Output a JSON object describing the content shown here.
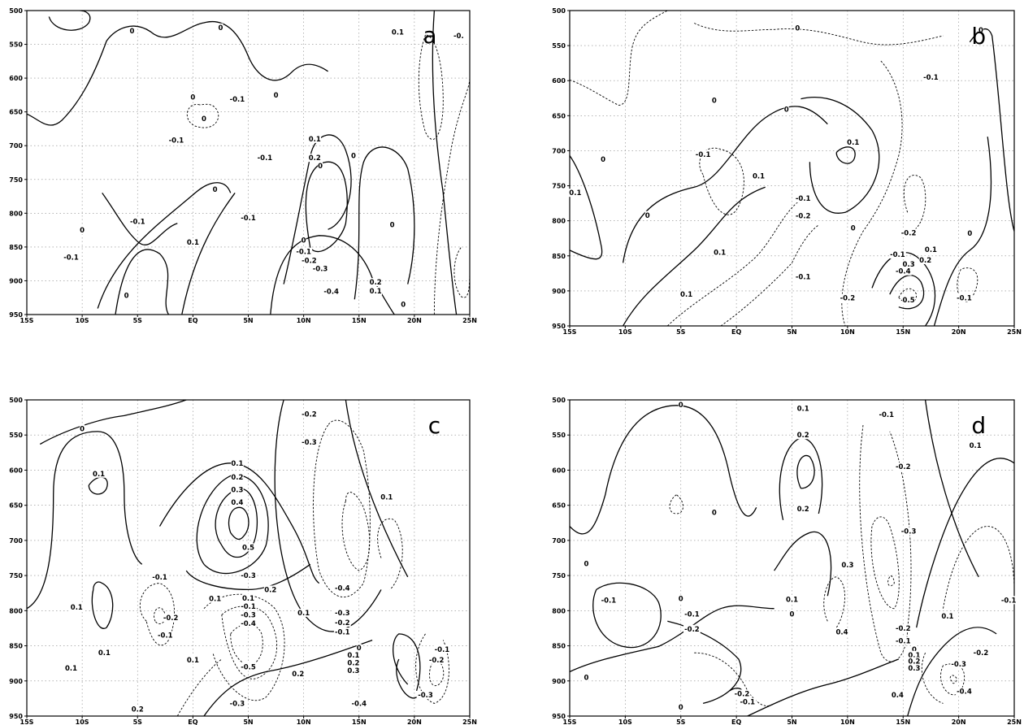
{
  "chart_data": [
    {
      "type": "contour",
      "panel_label": "a",
      "x_ticks": [
        "15S",
        "10S",
        "5S",
        "EQ",
        "5N",
        "10N",
        "15N",
        "20N",
        "25N"
      ],
      "y_ticks": [
        "500",
        "550",
        "600",
        "650",
        "700",
        "750",
        "800",
        "850",
        "900",
        "950"
      ],
      "xlim": [
        -15,
        25
      ],
      "ylim": [
        950,
        500
      ],
      "grid": true,
      "contour_labels": [
        {
          "text": "0",
          "lon": -5.5,
          "p": 530
        },
        {
          "text": "0",
          "lon": 2.5,
          "p": 525
        },
        {
          "text": "0",
          "lon": 0,
          "p": 628
        },
        {
          "text": "0",
          "lon": 1,
          "p": 660
        },
        {
          "text": "0",
          "lon": -10,
          "p": 825
        },
        {
          "text": "0",
          "lon": 2,
          "p": 765
        },
        {
          "text": "0",
          "lon": -6,
          "p": 922
        },
        {
          "text": "0",
          "lon": 7.5,
          "p": 625
        },
        {
          "text": "0",
          "lon": 11.5,
          "p": 730
        },
        {
          "text": "0",
          "lon": 14.5,
          "p": 715
        },
        {
          "text": "0",
          "lon": 18,
          "p": 817
        },
        {
          "text": "0",
          "lon": 19,
          "p": 935
        },
        {
          "text": "0",
          "lon": 10,
          "p": 840
        },
        {
          "text": "0.1",
          "lon": 18.5,
          "p": 532
        },
        {
          "text": "-0.",
          "lon": 24,
          "p": 537
        },
        {
          "text": "-0.1",
          "lon": 4,
          "p": 631
        },
        {
          "text": "-0.1",
          "lon": -1.5,
          "p": 692
        },
        {
          "text": "-0.1",
          "lon": 6.5,
          "p": 718
        },
        {
          "text": "0.1",
          "lon": 11,
          "p": 690
        },
        {
          "text": "0.2",
          "lon": 11,
          "p": 718
        },
        {
          "text": "-0.1",
          "lon": -5,
          "p": 812
        },
        {
          "text": "-0.1",
          "lon": -11,
          "p": 865
        },
        {
          "text": "-0.1",
          "lon": 5,
          "p": 807
        },
        {
          "text": "0.1",
          "lon": 0,
          "p": 843
        },
        {
          "text": "-0.1",
          "lon": 10,
          "p": 857
        },
        {
          "text": "-0.2",
          "lon": 10.5,
          "p": 870
        },
        {
          "text": "-0.3",
          "lon": 11.5,
          "p": 882
        },
        {
          "text": "-0.4",
          "lon": 12.5,
          "p": 916
        },
        {
          "text": "0.2",
          "lon": 16.5,
          "p": 902
        },
        {
          "text": "0.1",
          "lon": 16.5,
          "p": 915
        }
      ]
    },
    {
      "type": "contour",
      "panel_label": "b",
      "x_ticks": [
        "15S",
        "10S",
        "5S",
        "EQ",
        "5N",
        "10N",
        "15N",
        "20N",
        "25N"
      ],
      "y_ticks": [
        "500",
        "550",
        "600",
        "650",
        "700",
        "750",
        "800",
        "850",
        "900",
        "950"
      ],
      "xlim": [
        -15,
        25
      ],
      "ylim": [
        950,
        500
      ],
      "grid": true,
      "contour_labels": [
        {
          "text": "0",
          "lon": 5.5,
          "p": 525
        },
        {
          "text": "0",
          "lon": 22,
          "p": 528
        },
        {
          "text": "-0.1",
          "lon": 17.5,
          "p": 595
        },
        {
          "text": "0",
          "lon": -2,
          "p": 628
        },
        {
          "text": "0",
          "lon": 4.5,
          "p": 641
        },
        {
          "text": "0",
          "lon": -12,
          "p": 712
        },
        {
          "text": "0.1",
          "lon": 10.5,
          "p": 688
        },
        {
          "text": "-0.1",
          "lon": -3,
          "p": 705
        },
        {
          "text": "0.1",
          "lon": -14.5,
          "p": 760
        },
        {
          "text": "0",
          "lon": -8,
          "p": 792
        },
        {
          "text": "0.1",
          "lon": 2,
          "p": 736
        },
        {
          "text": "-0.1",
          "lon": 6,
          "p": 768
        },
        {
          "text": "-0.2",
          "lon": 6,
          "p": 793
        },
        {
          "text": "0",
          "lon": 10.5,
          "p": 810
        },
        {
          "text": "-0.2",
          "lon": 15.5,
          "p": 817
        },
        {
          "text": "0.1",
          "lon": -1.5,
          "p": 845
        },
        {
          "text": "-0.1",
          "lon": 6,
          "p": 880
        },
        {
          "text": "0.1",
          "lon": -4.5,
          "p": 905
        },
        {
          "text": "0",
          "lon": 21,
          "p": 818
        },
        {
          "text": "0.1",
          "lon": 17.5,
          "p": 841
        },
        {
          "text": "0.2",
          "lon": 17,
          "p": 856
        },
        {
          "text": "-0.1",
          "lon": 14.5,
          "p": 848
        },
        {
          "text": "0.3",
          "lon": 15.5,
          "p": 862
        },
        {
          "text": "-0.4",
          "lon": 15,
          "p": 872
        },
        {
          "text": "0.5",
          "lon": 15.5,
          "p": 913
        },
        {
          "text": "-0.2",
          "lon": 10,
          "p": 910
        },
        {
          "text": "-0.1",
          "lon": 20.5,
          "p": 910
        }
      ]
    },
    {
      "type": "contour",
      "panel_label": "c",
      "x_ticks": [
        "15S",
        "10S",
        "5S",
        "EQ",
        "5N",
        "10N",
        "15N",
        "20N",
        "25N"
      ],
      "y_ticks": [
        "500",
        "550",
        "600",
        "650",
        "700",
        "750",
        "800",
        "850",
        "900",
        "950"
      ],
      "xlim": [
        -15,
        25
      ],
      "ylim": [
        950,
        500
      ],
      "grid": true,
      "contour_labels": [
        {
          "text": "0",
          "lon": -10,
          "p": 541
        },
        {
          "text": "-0.2",
          "lon": 10.5,
          "p": 520
        },
        {
          "text": "-0.3",
          "lon": 10.5,
          "p": 560
        },
        {
          "text": "0.1",
          "lon": -8.5,
          "p": 605
        },
        {
          "text": "0.1",
          "lon": 4,
          "p": 590
        },
        {
          "text": "0.2",
          "lon": 4,
          "p": 610
        },
        {
          "text": "0.3",
          "lon": 4,
          "p": 628
        },
        {
          "text": "0.4",
          "lon": 4,
          "p": 646
        },
        {
          "text": "0.5",
          "lon": 5,
          "p": 710
        },
        {
          "text": "-0.3",
          "lon": 5,
          "p": 750
        },
        {
          "text": "0.1",
          "lon": 17.5,
          "p": 638
        },
        {
          "text": "-0.1",
          "lon": -3,
          "p": 752
        },
        {
          "text": "0.1",
          "lon": -10.5,
          "p": 795
        },
        {
          "text": "-0.2",
          "lon": -2,
          "p": 810
        },
        {
          "text": "-0.1",
          "lon": -2.5,
          "p": 835
        },
        {
          "text": "0.2",
          "lon": 7,
          "p": 770
        },
        {
          "text": "0.1",
          "lon": 2,
          "p": 783
        },
        {
          "text": "0.1",
          "lon": 10,
          "p": 803
        },
        {
          "text": "-0.4",
          "lon": 13.5,
          "p": 768
        },
        {
          "text": "-0.3",
          "lon": 13.5,
          "p": 803
        },
        {
          "text": "-0.2",
          "lon": 13.5,
          "p": 817
        },
        {
          "text": "-0.1",
          "lon": 13.5,
          "p": 830
        },
        {
          "text": "0.1",
          "lon": 5,
          "p": 782
        },
        {
          "text": "-0.1",
          "lon": 5,
          "p": 794
        },
        {
          "text": "-0.3",
          "lon": 5,
          "p": 806
        },
        {
          "text": "-0.4",
          "lon": 5,
          "p": 818
        },
        {
          "text": "-0.5",
          "lon": 5,
          "p": 880
        },
        {
          "text": "0.2",
          "lon": 9.5,
          "p": 890
        },
        {
          "text": "-0.3",
          "lon": 4,
          "p": 932
        },
        {
          "text": "0.1",
          "lon": -11,
          "p": 882
        },
        {
          "text": "0.1",
          "lon": 0,
          "p": 870
        },
        {
          "text": "0.2",
          "lon": -5,
          "p": 940
        },
        {
          "text": "0",
          "lon": 15,
          "p": 853
        },
        {
          "text": "0.1",
          "lon": 14.5,
          "p": 863
        },
        {
          "text": "0.2",
          "lon": 14.5,
          "p": 874
        },
        {
          "text": "0.3",
          "lon": 14.5,
          "p": 885
        },
        {
          "text": "-0.4",
          "lon": 15,
          "p": 932
        },
        {
          "text": "-0.1",
          "lon": 22.5,
          "p": 855
        },
        {
          "text": "-0.2",
          "lon": 22,
          "p": 870
        },
        {
          "text": "-0.3",
          "lon": 21,
          "p": 920
        },
        {
          "text": "0.1",
          "lon": -8,
          "p": 860
        }
      ]
    },
    {
      "type": "contour",
      "panel_label": "d",
      "x_ticks": [
        "15S",
        "10S",
        "5S",
        "EQ",
        "5N",
        "10N",
        "15N",
        "20N",
        "25N"
      ],
      "y_ticks": [
        "500",
        "550",
        "600",
        "650",
        "700",
        "750",
        "800",
        "850",
        "900",
        "950"
      ],
      "xlim": [
        -15,
        25
      ],
      "ylim": [
        950,
        500
      ],
      "grid": true,
      "contour_labels": [
        {
          "text": "0",
          "lon": -5,
          "p": 507
        },
        {
          "text": "0.1",
          "lon": 6,
          "p": 512
        },
        {
          "text": "-0.1",
          "lon": 13.5,
          "p": 521
        },
        {
          "text": "0.2",
          "lon": 6,
          "p": 550
        },
        {
          "text": "0.1",
          "lon": 21.5,
          "p": 565
        },
        {
          "text": "-0.2",
          "lon": 15,
          "p": 595
        },
        {
          "text": "0",
          "lon": -2,
          "p": 660
        },
        {
          "text": "0.2",
          "lon": 6,
          "p": 655
        },
        {
          "text": "-0.3",
          "lon": 15.5,
          "p": 687
        },
        {
          "text": "0",
          "lon": -13.5,
          "p": 733
        },
        {
          "text": "0",
          "lon": -5,
          "p": 783
        },
        {
          "text": "0.1",
          "lon": 5,
          "p": 784
        },
        {
          "text": "0.3",
          "lon": 10,
          "p": 735
        },
        {
          "text": "-0.1",
          "lon": -11.5,
          "p": 785
        },
        {
          "text": "-0.1",
          "lon": -4,
          "p": 805
        },
        {
          "text": "0.4",
          "lon": 9.5,
          "p": 830
        },
        {
          "text": "0",
          "lon": 5,
          "p": 805
        },
        {
          "text": "-0.2",
          "lon": -4,
          "p": 826
        },
        {
          "text": "-0.2",
          "lon": 15,
          "p": 825
        },
        {
          "text": "-0.1",
          "lon": 15,
          "p": 843
        },
        {
          "text": "0",
          "lon": 16,
          "p": 855
        },
        {
          "text": "0.1",
          "lon": 16,
          "p": 863
        },
        {
          "text": "0.2",
          "lon": 16,
          "p": 872
        },
        {
          "text": "0.3",
          "lon": 16,
          "p": 882
        },
        {
          "text": "0.1",
          "lon": 19,
          "p": 808
        },
        {
          "text": "-0.1",
          "lon": 24.5,
          "p": 785
        },
        {
          "text": "-0.2",
          "lon": 22,
          "p": 860
        },
        {
          "text": "-0.3",
          "lon": 20,
          "p": 876
        },
        {
          "text": "-0.4",
          "lon": 20.5,
          "p": 915
        },
        {
          "text": "0.4",
          "lon": 14.5,
          "p": 920
        },
        {
          "text": "0",
          "lon": -13.5,
          "p": 895
        },
        {
          "text": "-0.2",
          "lon": 0.5,
          "p": 918
        },
        {
          "text": "-0.1",
          "lon": 1,
          "p": 930
        },
        {
          "text": "0",
          "lon": -5,
          "p": 937
        }
      ]
    }
  ]
}
